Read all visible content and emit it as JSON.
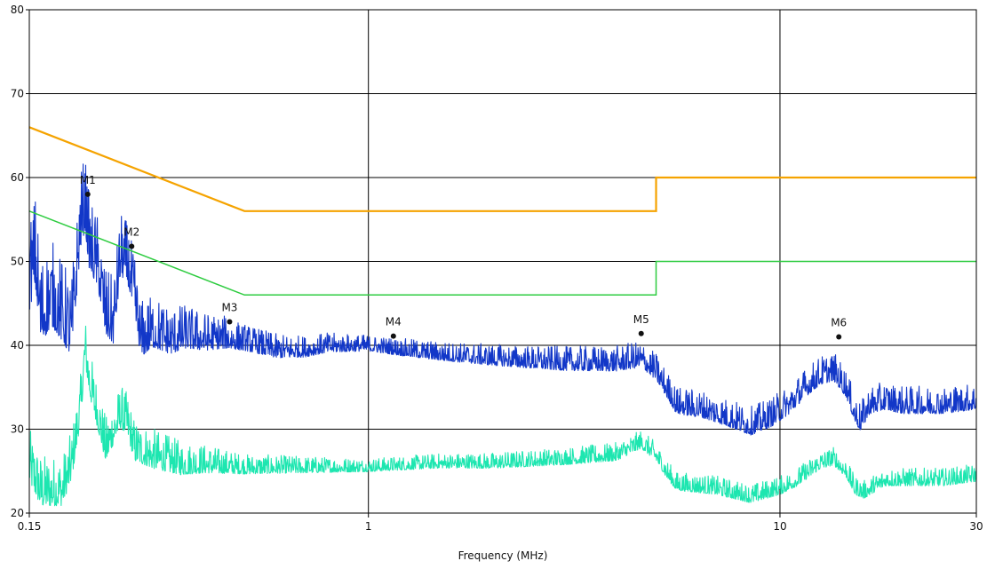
{
  "chart_data": {
    "type": "line",
    "xlabel": "Frequency (MHz)",
    "ylabel": "",
    "x_scale": "log",
    "xlim": [
      0.15,
      30
    ],
    "ylim": [
      20,
      80
    ],
    "x_ticks": [
      {
        "value": 0.15,
        "label": "0.15"
      },
      {
        "value": 1,
        "label": "1"
      },
      {
        "value": 10,
        "label": "10"
      },
      {
        "value": 30,
        "label": "30"
      }
    ],
    "y_ticks": [
      {
        "value": 20,
        "label": "20"
      },
      {
        "value": 30,
        "label": "30"
      },
      {
        "value": 40,
        "label": "40"
      },
      {
        "value": 50,
        "label": "50"
      },
      {
        "value": 60,
        "label": "60"
      },
      {
        "value": 70,
        "label": "70"
      },
      {
        "value": 80,
        "label": "80"
      }
    ],
    "grid": true,
    "limit_lines": [
      {
        "color": "#f5a300",
        "points": [
          [
            0.15,
            66
          ],
          [
            0.5,
            56
          ],
          [
            5,
            56
          ],
          [
            5,
            60
          ],
          [
            30,
            60
          ]
        ]
      },
      {
        "color": "#2ecc40",
        "points": [
          [
            0.15,
            56
          ],
          [
            0.5,
            46
          ],
          [
            5,
            46
          ],
          [
            5,
            50
          ],
          [
            30,
            50
          ]
        ]
      }
    ],
    "series": [
      {
        "color": "#1237c8",
        "base": [
          [
            0.15,
            48
          ],
          [
            0.155,
            51
          ],
          [
            0.16,
            44
          ],
          [
            0.17,
            46
          ],
          [
            0.18,
            44
          ],
          [
            0.19,
            42
          ],
          [
            0.2,
            55
          ],
          [
            0.205,
            57
          ],
          [
            0.21,
            52
          ],
          [
            0.22,
            50
          ],
          [
            0.23,
            44
          ],
          [
            0.24,
            43
          ],
          [
            0.25,
            51
          ],
          [
            0.26,
            50
          ],
          [
            0.27,
            46
          ],
          [
            0.28,
            41
          ],
          [
            0.3,
            42
          ],
          [
            0.33,
            41
          ],
          [
            0.36,
            41.5
          ],
          [
            0.4,
            41
          ],
          [
            0.45,
            41
          ],
          [
            0.5,
            40.5
          ],
          [
            0.6,
            39.5
          ],
          [
            0.7,
            39.5
          ],
          [
            0.8,
            40
          ],
          [
            1,
            40
          ],
          [
            1.2,
            39.5
          ],
          [
            1.5,
            39
          ],
          [
            2,
            38.5
          ],
          [
            3,
            38
          ],
          [
            4,
            38
          ],
          [
            4.6,
            38.5
          ],
          [
            5,
            37
          ],
          [
            5.3,
            35
          ],
          [
            5.6,
            33
          ],
          [
            6.5,
            32.5
          ],
          [
            7.5,
            31.5
          ],
          [
            8.5,
            30.5
          ],
          [
            9.5,
            31.5
          ],
          [
            10.5,
            33
          ],
          [
            11.5,
            35
          ],
          [
            12.5,
            36.5
          ],
          [
            13.5,
            37
          ],
          [
            14.5,
            35
          ],
          [
            15.2,
            32
          ],
          [
            15.7,
            31
          ],
          [
            16.5,
            33
          ],
          [
            18,
            33.5
          ],
          [
            20,
            33
          ],
          [
            25,
            33
          ],
          [
            30,
            33.5
          ]
        ],
        "noise": [
          [
            0.15,
            7
          ],
          [
            0.3,
            4
          ],
          [
            0.5,
            2
          ],
          [
            1,
            1.2
          ],
          [
            3,
            1.8
          ],
          [
            5,
            2
          ],
          [
            10,
            2.2
          ],
          [
            30,
            2
          ]
        ]
      },
      {
        "color": "#1de6b0",
        "base": [
          [
            0.15,
            26
          ],
          [
            0.16,
            23
          ],
          [
            0.17,
            23
          ],
          [
            0.18,
            23
          ],
          [
            0.19,
            26
          ],
          [
            0.2,
            33
          ],
          [
            0.205,
            40
          ],
          [
            0.21,
            36
          ],
          [
            0.22,
            32
          ],
          [
            0.23,
            28
          ],
          [
            0.25,
            32
          ],
          [
            0.26,
            31
          ],
          [
            0.27,
            28
          ],
          [
            0.3,
            27
          ],
          [
            0.35,
            26
          ],
          [
            0.4,
            26
          ],
          [
            0.5,
            25.5
          ],
          [
            0.6,
            25.5
          ],
          [
            0.8,
            25.5
          ],
          [
            1,
            25.5
          ],
          [
            1.5,
            26
          ],
          [
            2,
            26
          ],
          [
            3,
            26.5
          ],
          [
            4,
            27
          ],
          [
            4.6,
            28.5
          ],
          [
            5,
            27
          ],
          [
            5.3,
            25
          ],
          [
            5.6,
            23.5
          ],
          [
            7,
            23
          ],
          [
            8.5,
            22
          ],
          [
            10,
            23
          ],
          [
            11,
            24
          ],
          [
            12.5,
            26
          ],
          [
            13.5,
            26.5
          ],
          [
            14.5,
            25
          ],
          [
            15.2,
            23
          ],
          [
            16,
            22.5
          ],
          [
            18,
            24
          ],
          [
            20,
            24
          ],
          [
            25,
            24
          ],
          [
            30,
            24.5
          ]
        ],
        "noise": [
          [
            0.15,
            4
          ],
          [
            0.3,
            3
          ],
          [
            0.5,
            1.5
          ],
          [
            1,
            1
          ],
          [
            3,
            1.3
          ],
          [
            5,
            1.4
          ],
          [
            10,
            1.4
          ],
          [
            30,
            1.3
          ]
        ]
      }
    ],
    "markers": [
      {
        "label": "M1",
        "x": 0.208,
        "y": 58
      },
      {
        "label": "M2",
        "x": 0.266,
        "y": 51.8
      },
      {
        "label": "M3",
        "x": 0.46,
        "y": 42.8
      },
      {
        "label": "M4",
        "x": 1.15,
        "y": 41.1
      },
      {
        "label": "M5",
        "x": 4.6,
        "y": 41.4
      },
      {
        "label": "M6",
        "x": 13.9,
        "y": 41
      }
    ]
  }
}
